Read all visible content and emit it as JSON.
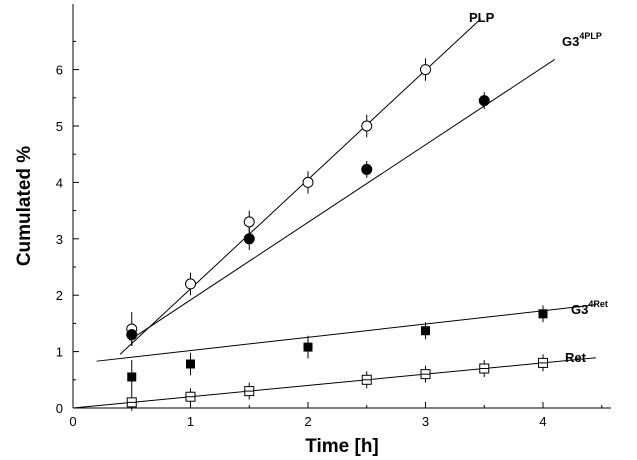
{
  "chart_data": {
    "type": "scatter",
    "title": "",
    "xlabel": "Time [h]",
    "ylabel": "Cumulated %",
    "xlim": [
      0,
      4.5
    ],
    "ylim": [
      0,
      6.9
    ],
    "x_ticks": [
      "0",
      "1",
      "2",
      "3",
      "4"
    ],
    "y_ticks": [
      "0",
      "1",
      "2",
      "3",
      "4",
      "5",
      "6"
    ],
    "grid": false,
    "legend": "none",
    "series": [
      {
        "name": "PLP",
        "label_main": "PLP",
        "label_sup": "",
        "marker": "circle-open",
        "x": [
          0.5,
          1.0,
          1.5,
          2.0,
          2.5,
          3.0
        ],
        "y": [
          1.4,
          2.2,
          3.3,
          4.0,
          5.0,
          6.0
        ],
        "err": [
          0.3,
          0.2,
          0.2,
          0.2,
          0.2,
          0.2
        ],
        "fit": [
          [
            0.4,
            0.95
          ],
          [
            3.47,
            6.9
          ]
        ]
      },
      {
        "name": "G3^4PLP",
        "label_main": "G3",
        "label_sup": "4PLP",
        "marker": "circle-filled",
        "x": [
          0.5,
          1.5,
          2.5,
          3.5
        ],
        "y": [
          1.3,
          3.0,
          4.23,
          5.45
        ],
        "err": [
          0.2,
          0.2,
          0.15,
          0.15
        ],
        "fit": [
          [
            0.48,
            1.2
          ],
          [
            4.1,
            6.18
          ]
        ]
      },
      {
        "name": "G3^4Ret",
        "label_main": "G3",
        "label_sup": "4Ret",
        "marker": "square-filled",
        "x": [
          0.5,
          1.0,
          2.0,
          3.0,
          4.0
        ],
        "y": [
          0.55,
          0.78,
          1.08,
          1.37,
          1.67
        ],
        "err": [
          0.3,
          0.2,
          0.2,
          0.15,
          0.15
        ],
        "fit": [
          [
            0.2,
            0.83
          ],
          [
            4.45,
            1.83
          ]
        ]
      },
      {
        "name": "Ret",
        "label_main": "Ret",
        "label_sup": "",
        "marker": "square-open",
        "x": [
          0.5,
          1.0,
          1.5,
          2.5,
          3.0,
          3.5,
          4.0
        ],
        "y": [
          0.1,
          0.2,
          0.3,
          0.5,
          0.6,
          0.7,
          0.8
        ],
        "err": [
          0.15,
          0.15,
          0.15,
          0.15,
          0.15,
          0.15,
          0.15
        ],
        "fit": [
          [
            0.0,
            0.0
          ],
          [
            4.45,
            0.89
          ]
        ]
      }
    ]
  }
}
